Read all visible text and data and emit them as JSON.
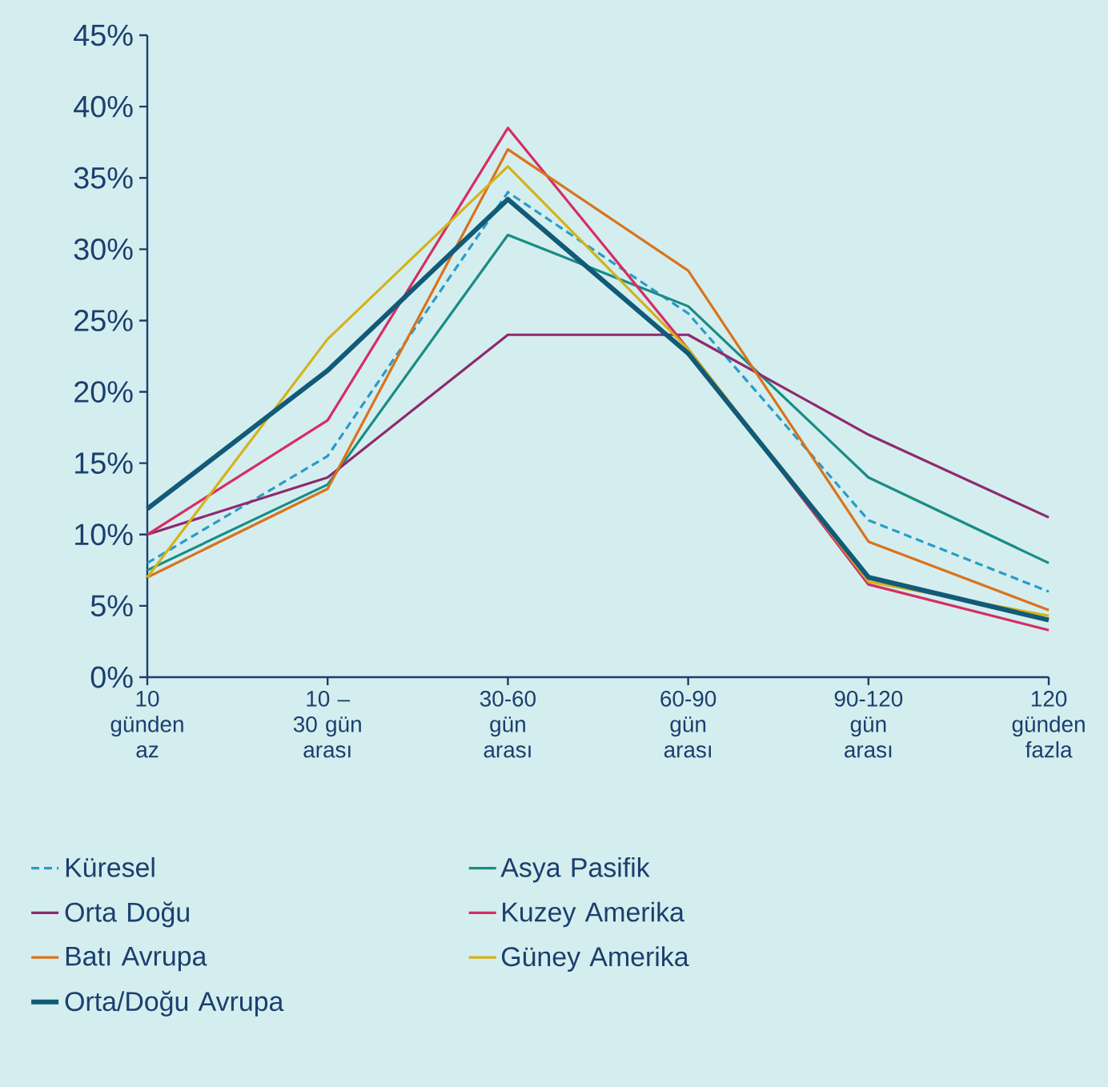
{
  "chart_data": {
    "type": "line",
    "categories": [
      "10 günden az",
      "10 – 30 gün arası",
      "30-60 gün arası",
      "60-90 gün arası",
      "90-120 gün arası",
      "120 günden fazla"
    ],
    "ylim": [
      0,
      45
    ],
    "yticks": [
      {
        "value": 0,
        "label": "0%"
      },
      {
        "value": 5,
        "label": "5%"
      },
      {
        "value": 10,
        "label": "10%"
      },
      {
        "value": 15,
        "label": "15%"
      },
      {
        "value": 20,
        "label": "20%"
      },
      {
        "value": 25,
        "label": "25%"
      },
      {
        "value": 30,
        "label": "30%"
      },
      {
        "value": 35,
        "label": "35%"
      },
      {
        "value": 40,
        "label": "40%"
      },
      {
        "value": 45,
        "label": "45%"
      }
    ],
    "grid": false,
    "legend": "bottom",
    "marker": "none",
    "line_style": "solid",
    "series": [
      {
        "name": "Küresel",
        "color": "#2a9bc9",
        "line_style": "dashed",
        "values": [
          8,
          15.5,
          34,
          25.5,
          11,
          6
        ]
      },
      {
        "name": "Asya Pasifik",
        "color": "#1a8c85",
        "values": [
          7.5,
          13.5,
          31,
          26,
          14,
          8
        ]
      },
      {
        "name": "Orta Doğu",
        "color": "#8e2a6e",
        "values": [
          10,
          14,
          24,
          24,
          17,
          11.2
        ]
      },
      {
        "name": "Kuzey Amerika",
        "color": "#d62d64",
        "values": [
          10,
          18,
          38.5,
          23,
          6.5,
          3.3
        ]
      },
      {
        "name": "Batı Avrupa",
        "color": "#d9731c",
        "values": [
          7,
          13.2,
          37,
          28.5,
          9.5,
          4.7
        ]
      },
      {
        "name": "Güney Amerika",
        "color": "#d4b21a",
        "values": [
          7,
          23.7,
          35.8,
          23,
          6.7,
          4.3
        ]
      },
      {
        "name": "Orta/Doğu Avrupa",
        "color": "#125a78",
        "values": [
          11.8,
          21.5,
          33.5,
          22.7,
          7,
          4
        ]
      }
    ]
  }
}
